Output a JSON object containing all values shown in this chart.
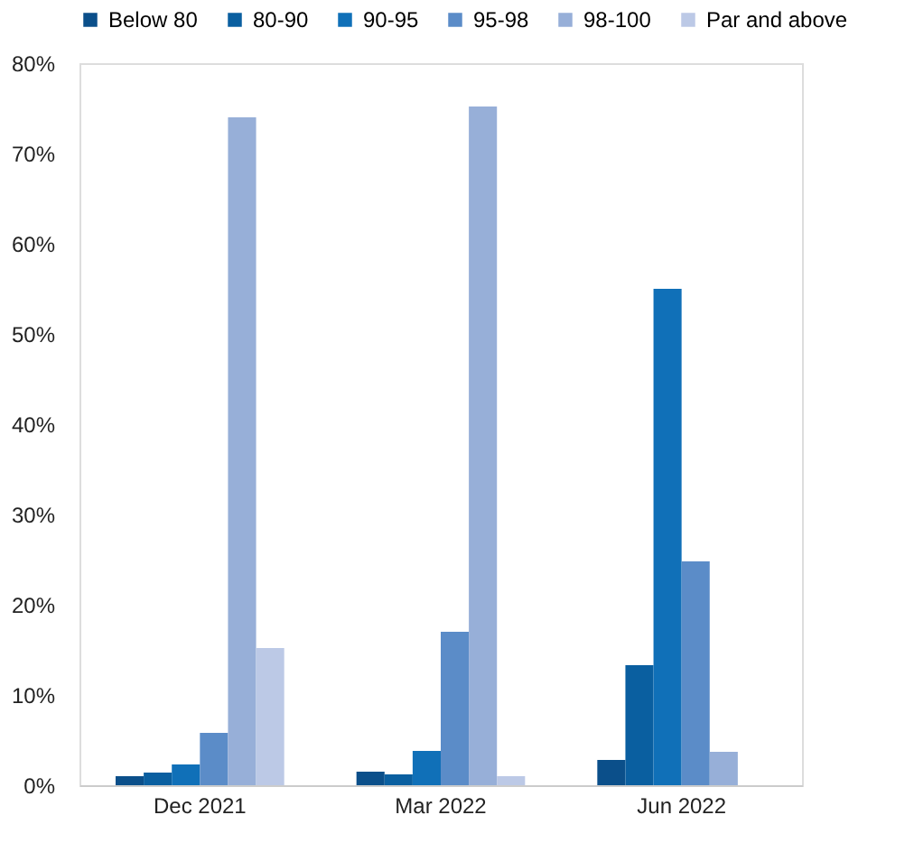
{
  "chart_data": {
    "type": "bar",
    "categories": [
      "Dec 2021",
      "Mar 2022",
      "Jun 2022"
    ],
    "series": [
      {
        "name": "Below 80",
        "color": "#0b4f8a",
        "values": [
          1.0,
          1.5,
          2.8
        ]
      },
      {
        "name": "80-90",
        "color": "#0a5fa0",
        "values": [
          1.4,
          1.2,
          13.3
        ]
      },
      {
        "name": "90-95",
        "color": "#1070b8",
        "values": [
          2.3,
          3.8,
          55.0
        ]
      },
      {
        "name": "95-98",
        "color": "#5b8cc8",
        "values": [
          5.8,
          17.0,
          24.8
        ]
      },
      {
        "name": "98-100",
        "color": "#97afd8",
        "values": [
          74.0,
          75.2,
          3.7
        ]
      },
      {
        "name": "Par and above",
        "color": "#bcc9e6",
        "values": [
          15.2,
          1.0,
          null
        ]
      }
    ],
    "ylim": [
      0,
      80
    ],
    "yticks": [
      {
        "value": 0,
        "label": "0%"
      },
      {
        "value": 10,
        "label": "10%"
      },
      {
        "value": 20,
        "label": "20%"
      },
      {
        "value": 30,
        "label": "30%"
      },
      {
        "value": 40,
        "label": "40%"
      },
      {
        "value": 50,
        "label": "50%"
      },
      {
        "value": 60,
        "label": "60%"
      },
      {
        "value": 70,
        "label": "70%"
      },
      {
        "value": 80,
        "label": "80%"
      }
    ],
    "grid": false,
    "legend": "top"
  }
}
